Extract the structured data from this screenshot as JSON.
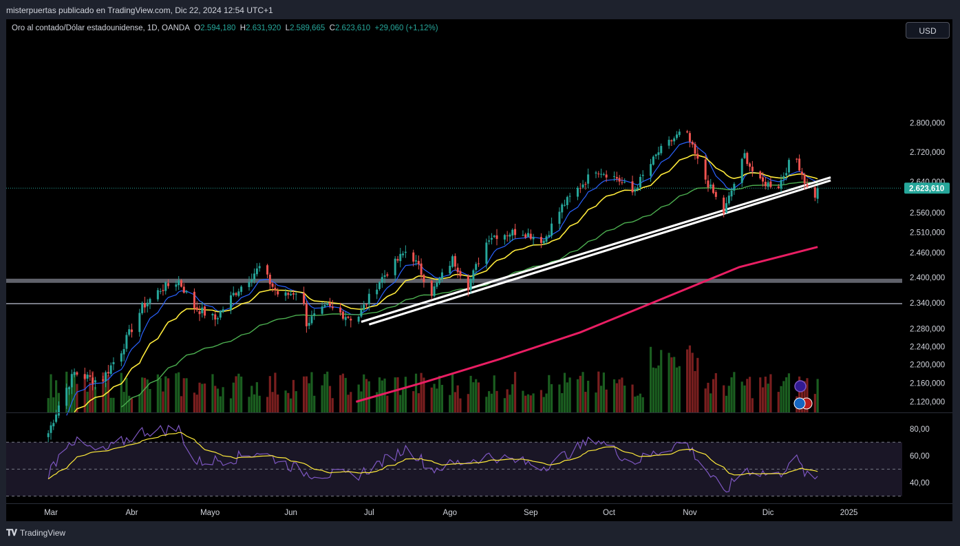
{
  "header": {
    "attribution": "misterpuertas publicado en TradingView.com, Dic 22, 2024 12:54 UTC+1"
  },
  "legend": {
    "symbol": "Oro al contado/Dólar estadounidense, 1D, OANDA",
    "o_label": "O",
    "o_value": "2.594,180",
    "h_label": "H",
    "h_value": "2.631,920",
    "l_label": "L",
    "l_value": "2.589,665",
    "c_label": "C",
    "c_value": "2.623,610",
    "change": "+29,060 (+1,12%)"
  },
  "currency_button": "USD",
  "last_price_label": "2.623,610",
  "footer": {
    "brand": "TradingView",
    "logo": "tv-logo-icon"
  },
  "colors": {
    "up": "#26a69a",
    "down": "#ef5350",
    "vol_up": "#1b5e20",
    "vol_down": "#7a1f1f",
    "ema_fast": "#2962ff",
    "ema_mid": "#ffeb3b",
    "ema_slow": "#4caf50",
    "ema_long": "#e91e63",
    "rsi": "#7e57c2",
    "rsi_ma": "#ffeb3b",
    "trendline": "#ffffff",
    "level": "#787b86"
  },
  "chart_data": {
    "type": "candlestick",
    "instrument": "Oro al contado/Dólar estadounidense",
    "timeframe": "1D",
    "exchange": "OANDA",
    "price_axis": {
      "ticks": [
        "2.800,000",
        "2.720,000",
        "2.640,000",
        "2.560,000",
        "2.510,000",
        "2.460,000",
        "2.400,000",
        "2.340,000",
        "2.280,000",
        "2.240,000",
        "2.200,000",
        "2.160,000",
        "2.120,000"
      ],
      "tick_values": [
        2800,
        2720,
        2640,
        2560,
        2510,
        2460,
        2400,
        2340,
        2280,
        2240,
        2200,
        2160,
        2120
      ]
    },
    "time_axis": {
      "labels": [
        "Mar",
        "Abr",
        "Mayo",
        "Jun",
        "Jul",
        "Ago",
        "Sep",
        "Oct",
        "Nov",
        "Dic",
        "2025"
      ]
    },
    "rsi_axis": {
      "ticks": [
        "80,00",
        "60,00",
        "40,00"
      ],
      "tick_values": [
        80,
        60,
        40
      ],
      "bands": [
        70,
        50,
        30
      ]
    },
    "last_close": 2623.61,
    "horizontal_levels": [
      2392,
      2338
    ],
    "trendlines": [
      {
        "from": [
          "Jun 28",
          2296
        ],
        "to": [
          "Dic 25",
          2652
        ]
      },
      {
        "from": [
          "Jul 1",
          2290
        ],
        "to": [
          "Dic 25",
          2644
        ]
      }
    ],
    "ema_long_path": [
      {
        "t": "Jun 26",
        "v": 2120
      },
      {
        "t": "Jul 20",
        "v": 2158
      },
      {
        "t": "Ago 20",
        "v": 2212
      },
      {
        "t": "Sep 20",
        "v": 2272
      },
      {
        "t": "Oct 20",
        "v": 2346
      },
      {
        "t": "Nov 20",
        "v": 2425
      },
      {
        "t": "Dic 20",
        "v": 2474
      }
    ],
    "close_path": [
      {
        "t": "Feb 28",
        "v": 2040
      },
      {
        "t": "Mar 5",
        "v": 2128
      },
      {
        "t": "Mar 10",
        "v": 2182
      },
      {
        "t": "Mar 20",
        "v": 2162
      },
      {
        "t": "Mar 28",
        "v": 2232
      },
      {
        "t": "Abr 5",
        "v": 2330
      },
      {
        "t": "Abr 12",
        "v": 2372
      },
      {
        "t": "Abr 19",
        "v": 2392
      },
      {
        "t": "Abr 25",
        "v": 2330
      },
      {
        "t": "May 3",
        "v": 2302
      },
      {
        "t": "May 10",
        "v": 2360
      },
      {
        "t": "May 20",
        "v": 2424
      },
      {
        "t": "May 28",
        "v": 2352
      },
      {
        "t": "Jun 5",
        "v": 2372
      },
      {
        "t": "Jun 7",
        "v": 2294
      },
      {
        "t": "Jun 15",
        "v": 2330
      },
      {
        "t": "Jun 26",
        "v": 2300
      },
      {
        "t": "Jul 5",
        "v": 2392
      },
      {
        "t": "Jul 16",
        "v": 2470
      },
      {
        "t": "Jul 25",
        "v": 2364
      },
      {
        "t": "Ago 2",
        "v": 2444
      },
      {
        "t": "Ago 8",
        "v": 2380
      },
      {
        "t": "Ago 16",
        "v": 2500
      },
      {
        "t": "Ago 28",
        "v": 2514
      },
      {
        "t": "Sep 6",
        "v": 2490
      },
      {
        "t": "Sep 13",
        "v": 2576
      },
      {
        "t": "Sep 26",
        "v": 2674
      },
      {
        "t": "Oct 4",
        "v": 2650
      },
      {
        "t": "Oct 10",
        "v": 2612
      },
      {
        "t": "Oct 20",
        "v": 2720
      },
      {
        "t": "Oct 30",
        "v": 2782
      },
      {
        "t": "Nov 6",
        "v": 2660
      },
      {
        "t": "Nov 14",
        "v": 2560
      },
      {
        "t": "Nov 22",
        "v": 2712
      },
      {
        "t": "Nov 27",
        "v": 2640
      },
      {
        "t": "Dic 5",
        "v": 2630
      },
      {
        "t": "Dic 11",
        "v": 2718
      },
      {
        "t": "Dic 18",
        "v": 2586
      },
      {
        "t": "Dic 20",
        "v": 2623.61
      }
    ],
    "rsi_path": [
      {
        "t": "Feb 28",
        "v": 44
      },
      {
        "t": "Mar 8",
        "v": 72
      },
      {
        "t": "Mar 20",
        "v": 62
      },
      {
        "t": "Abr 5",
        "v": 78
      },
      {
        "t": "Abr 19",
        "v": 80
      },
      {
        "t": "Abr 25",
        "v": 55
      },
      {
        "t": "May 10",
        "v": 58
      },
      {
        "t": "May 20",
        "v": 63
      },
      {
        "t": "Jun 7",
        "v": 47
      },
      {
        "t": "Jun 26",
        "v": 45
      },
      {
        "t": "Jul 16",
        "v": 66
      },
      {
        "t": "Jul 25",
        "v": 50
      },
      {
        "t": "Ago 16",
        "v": 60
      },
      {
        "t": "Sep 6",
        "v": 52
      },
      {
        "t": "Sep 26",
        "v": 73
      },
      {
        "t": "Oct 10",
        "v": 55
      },
      {
        "t": "Oct 30",
        "v": 71
      },
      {
        "t": "Nov 14",
        "v": 32
      },
      {
        "t": "Nov 22",
        "v": 50
      },
      {
        "t": "Dic 5",
        "v": 45
      },
      {
        "t": "Dic 11",
        "v": 60
      },
      {
        "t": "Dic 18",
        "v": 38
      },
      {
        "t": "Dic 20",
        "v": 45
      }
    ],
    "grid": false,
    "legend_position": "top-left"
  }
}
